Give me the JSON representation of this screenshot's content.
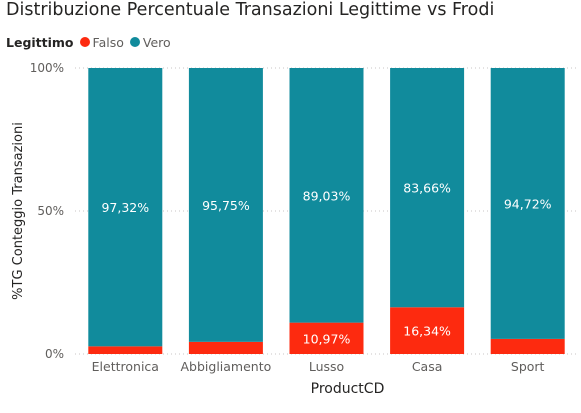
{
  "chart_data": {
    "type": "bar",
    "stacked": "100%",
    "title": "Distribuzione Percentuale Transazioni Legittime vs Frodi",
    "xlabel": "ProductCD",
    "ylabel": "%TG Conteggio Transazioni",
    "ylim": [
      0,
      100
    ],
    "yticks": [
      "0%",
      "50%",
      "100%"
    ],
    "grid": true,
    "legend": {
      "title": "Legittimo",
      "placement": "top-left",
      "entries": [
        "Falso",
        "Vero"
      ]
    },
    "categories": [
      "Elettronica",
      "Abbigliamento",
      "Lusso",
      "Casa",
      "Sport"
    ],
    "series": [
      {
        "name": "Falso",
        "color": "#fd2a0f",
        "values": [
          2.68,
          4.25,
          10.97,
          16.34,
          5.28
        ],
        "labels": [
          "",
          "",
          "10,97%",
          "16,34%",
          ""
        ]
      },
      {
        "name": "Vero",
        "color": "#118b9c",
        "values": [
          97.32,
          95.75,
          89.03,
          83.66,
          94.72
        ],
        "labels": [
          "97,32%",
          "95,75%",
          "89,03%",
          "83,66%",
          "94,72%"
        ]
      }
    ]
  }
}
